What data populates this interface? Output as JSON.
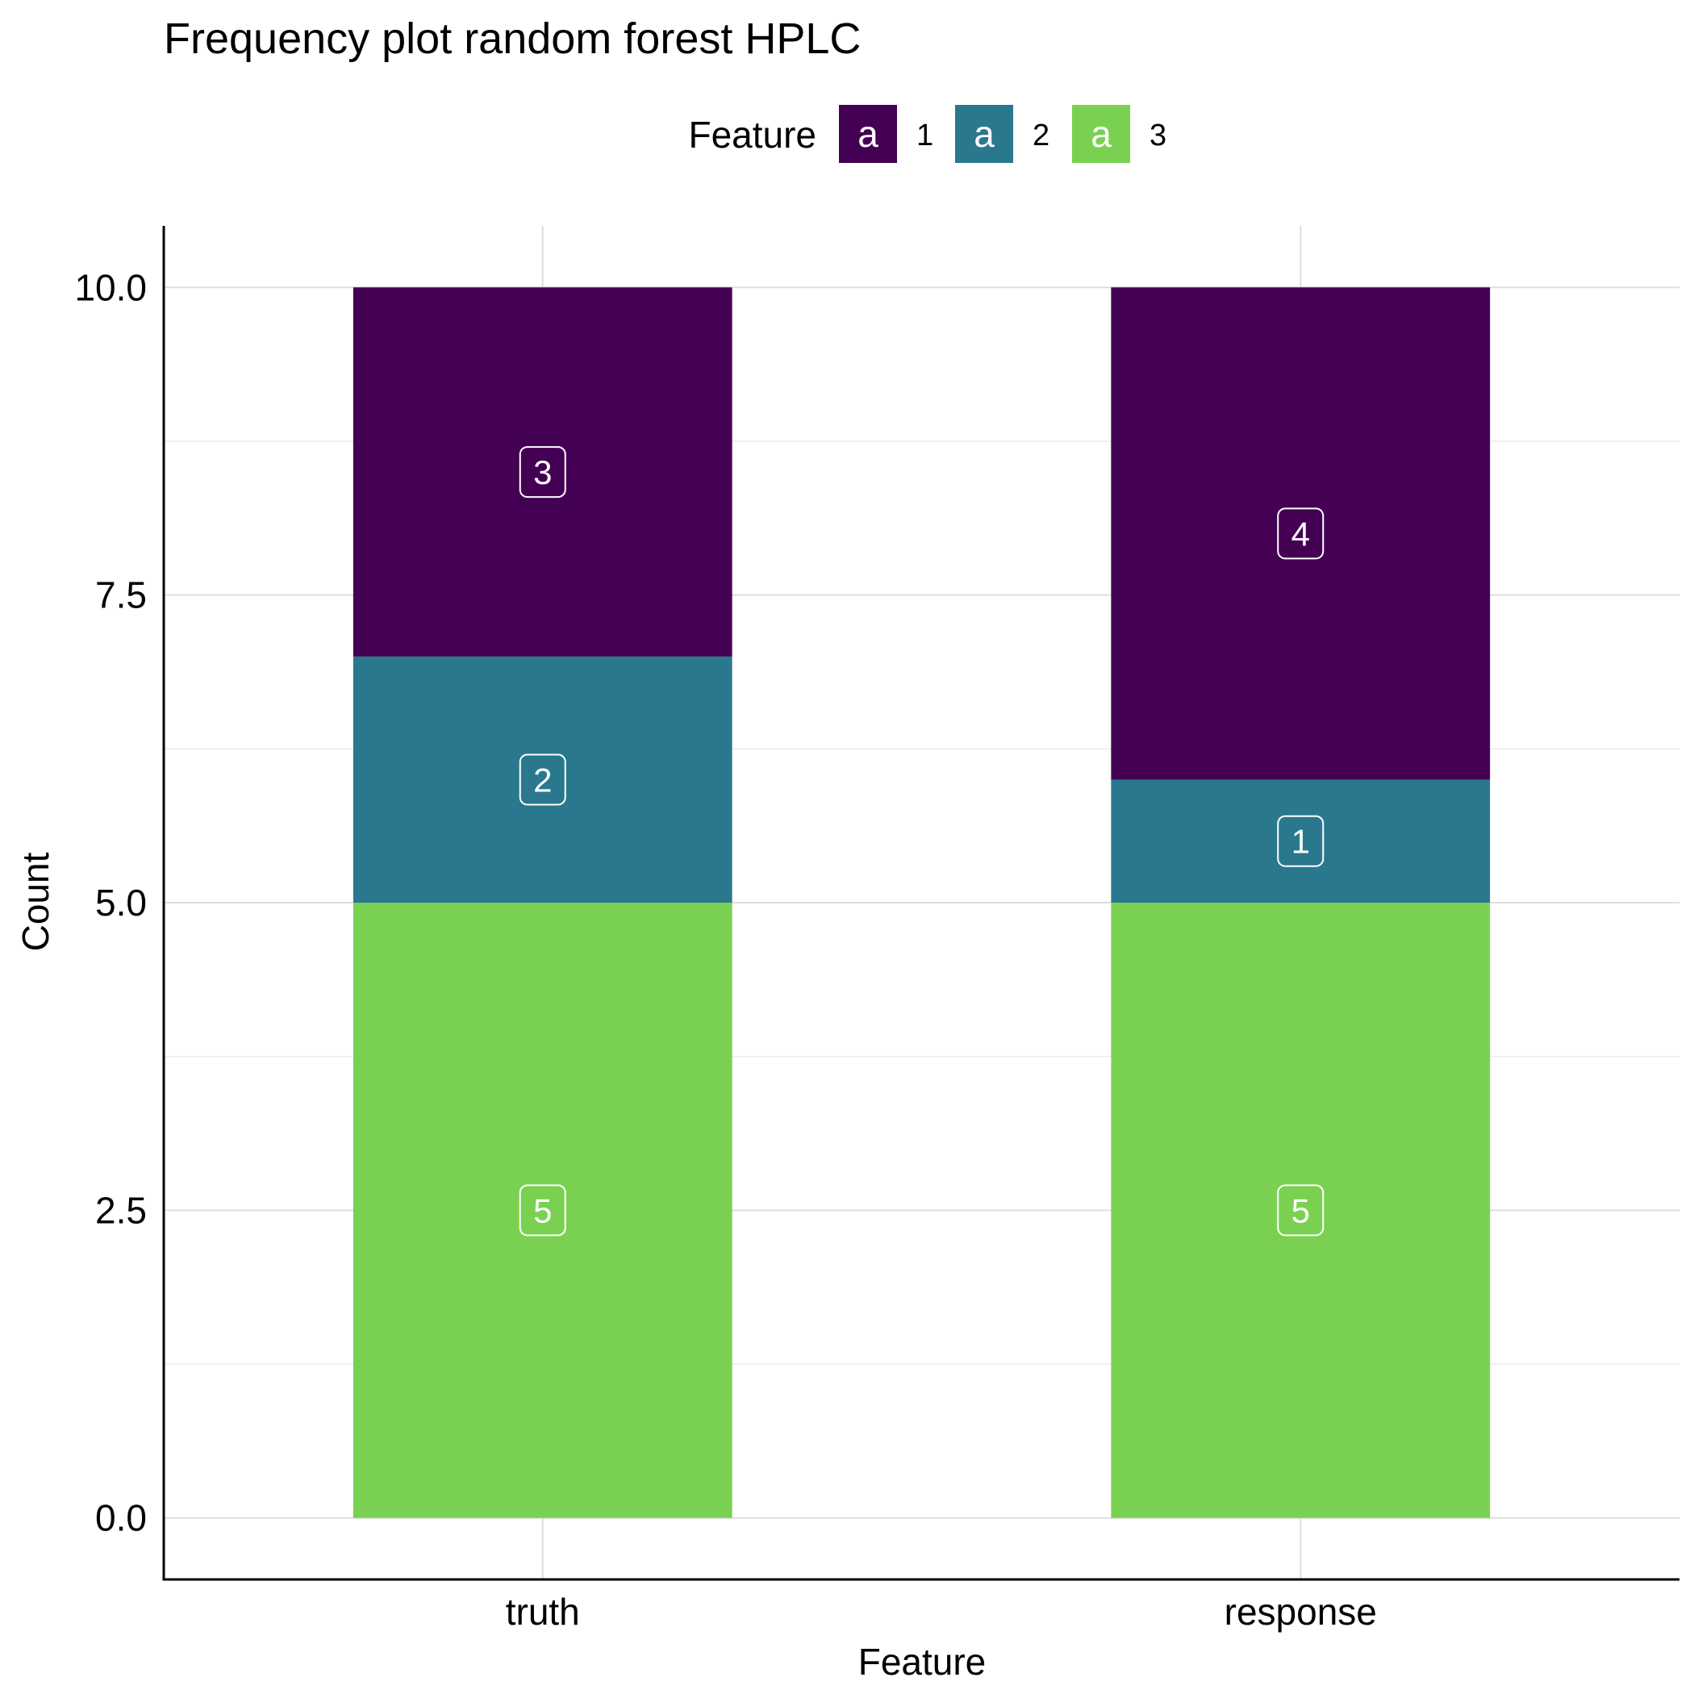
{
  "chart_data": {
    "type": "bar",
    "stacked": true,
    "title": "Frequency plot random forest HPLC",
    "xlabel": "Feature",
    "ylabel": "Count",
    "categories": [
      "truth",
      "response"
    ],
    "ylim": [
      -0.5,
      10.5
    ],
    "yticks": [
      "0.0",
      "2.5",
      "5.0",
      "7.5",
      "10.0"
    ],
    "ytick_values": [
      0,
      2.5,
      5,
      7.5,
      10
    ],
    "grid": true,
    "legend": {
      "title": "Feature",
      "position": "top",
      "key_glyph": "a",
      "entries": [
        "1",
        "2",
        "3"
      ]
    },
    "series": [
      {
        "name": "3",
        "color": "#7AD151",
        "values": [
          5,
          5
        ]
      },
      {
        "name": "2",
        "color": "#2A788E",
        "values": [
          2,
          1
        ]
      },
      {
        "name": "1",
        "color": "#440154",
        "values": [
          3,
          4
        ]
      }
    ]
  }
}
